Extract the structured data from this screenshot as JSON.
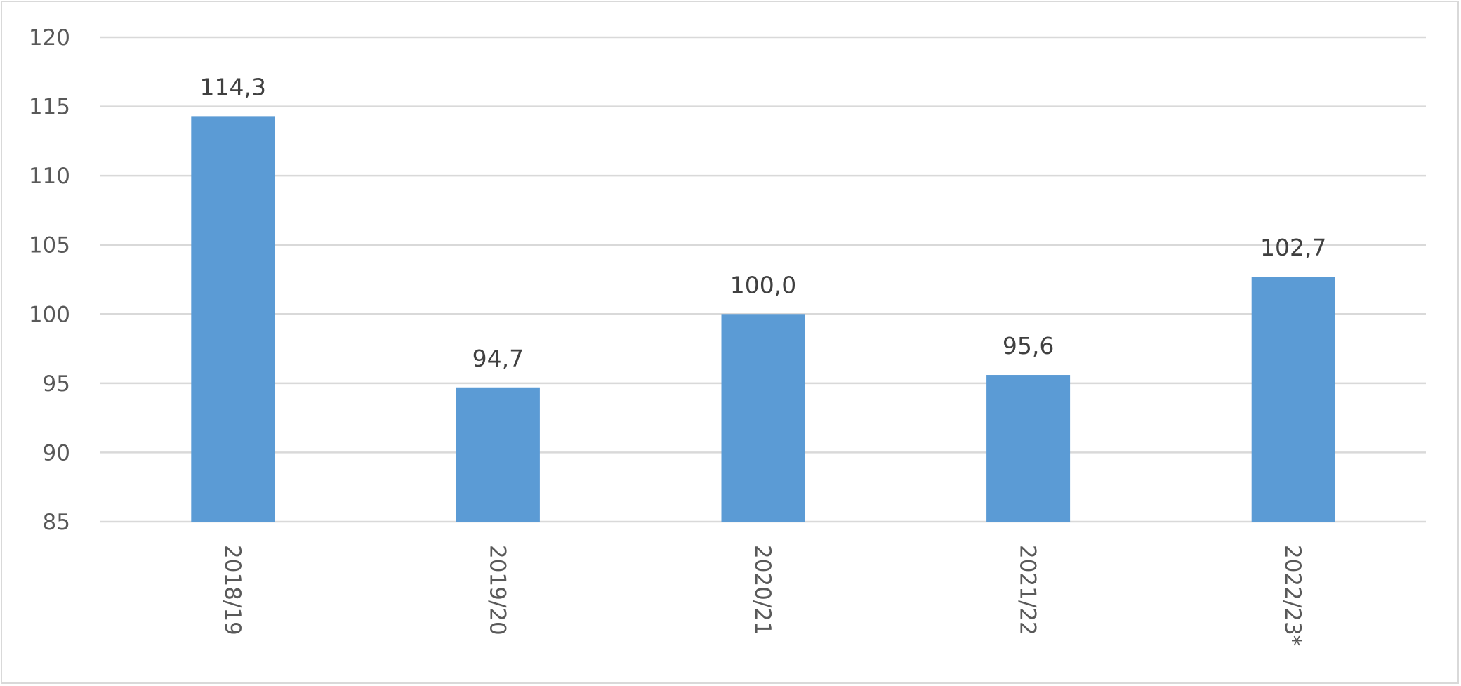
{
  "chart_data": {
    "type": "bar",
    "categories": [
      "2018/19",
      "2019/20",
      "2020/21",
      "2021/22",
      "2022/23*"
    ],
    "values": [
      114.3,
      94.7,
      100.0,
      95.6,
      102.7
    ],
    "data_labels": [
      "114,3",
      "94,7",
      "100,0",
      "95,6",
      "102,7"
    ],
    "ylim": [
      85,
      120
    ],
    "yticks": [
      85,
      90,
      95,
      100,
      105,
      110,
      115,
      120
    ],
    "grid": true,
    "bar_color": "#5b9bd5",
    "grid_color": "#d9d9d9",
    "legend": "none",
    "title": "",
    "xlabel": "",
    "ylabel": ""
  }
}
